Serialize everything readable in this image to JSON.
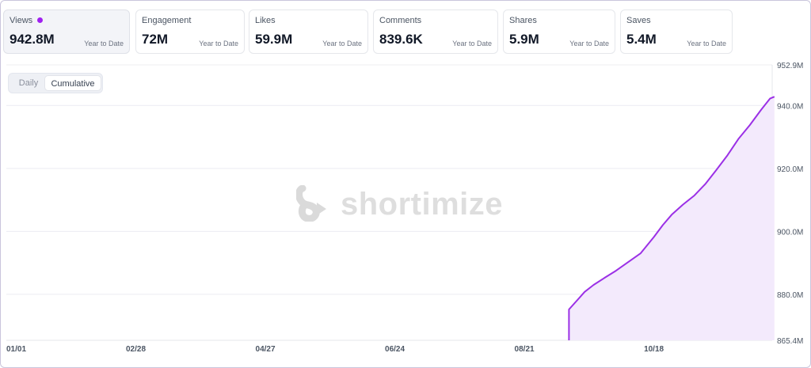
{
  "metrics": [
    {
      "label": "Views",
      "value": "942.8M",
      "period": "Year to Date",
      "active": true,
      "dot_color": "#a020f0"
    },
    {
      "label": "Engagement",
      "value": "72M",
      "period": "Year to Date",
      "active": false
    },
    {
      "label": "Likes",
      "value": "59.9M",
      "period": "Year to Date",
      "active": false
    },
    {
      "label": "Comments",
      "value": "839.6K",
      "period": "Year to Date",
      "active": false
    },
    {
      "label": "Shares",
      "value": "5.9M",
      "period": "Year to Date",
      "active": false
    },
    {
      "label": "Saves",
      "value": "5.4M",
      "period": "Year to Date",
      "active": false
    }
  ],
  "toggle": {
    "daily": "Daily",
    "cumulative": "Cumulative",
    "selected": "Cumulative"
  },
  "watermark": {
    "text": "shortimize"
  },
  "colors": {
    "line": "#9b30e6",
    "fill": "#f3eafc",
    "grid": "#ececf2"
  },
  "chart_data": {
    "type": "area",
    "title": "",
    "xlabel": "",
    "ylabel": "",
    "x_tick_labels": [
      "01/01",
      "02/28",
      "04/27",
      "06/24",
      "08/21",
      "10/18"
    ],
    "x_tick_days": [
      0,
      58,
      116,
      174,
      232,
      290
    ],
    "xlim_days": [
      0,
      343
    ],
    "y_tick_labels": [
      "952.9M",
      "940.0M",
      "920.0M",
      "900.0M",
      "880.0M",
      "865.4M"
    ],
    "y_tick_values": [
      952.9,
      940.0,
      920.0,
      900.0,
      880.0,
      865.4
    ],
    "ylim": [
      865.4,
      952.9
    ],
    "y_axis_side": "right",
    "grid": true,
    "legend": "none",
    "series": [
      {
        "unit": "M views (cumulative)",
        "x_days": [
          252,
          252,
          255,
          259,
          263,
          268,
          273,
          278,
          284,
          290,
          294,
          298,
          303,
          308,
          313,
          318,
          323,
          328,
          333,
          338,
          342,
          344
        ],
        "values": [
          865.4,
          875.2,
          877.6,
          880.8,
          883.0,
          885.3,
          887.5,
          890.0,
          893.0,
          898.2,
          902.0,
          905.3,
          908.5,
          911.3,
          915.0,
          919.5,
          924.2,
          929.5,
          933.8,
          938.6,
          942.2,
          942.8
        ]
      }
    ]
  }
}
